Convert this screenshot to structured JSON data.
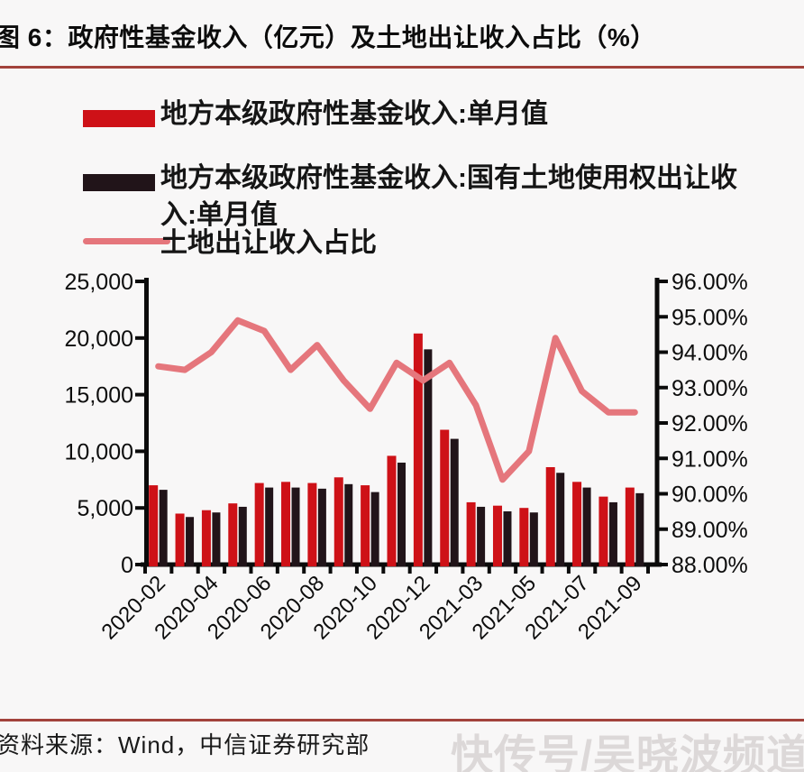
{
  "header": {
    "title": "图 6：政府性基金收入（亿元）及土地出让收入占比（%）"
  },
  "legend": {
    "items": [
      {
        "label": "地方本级政府性基金收入:单月值",
        "swatch_color": "#ce1117",
        "swatch_type": "bar"
      },
      {
        "label": "地方本级政府性基金收入:国有土地使用权出让收入:单月值",
        "swatch_color": "#211419",
        "swatch_type": "bar"
      },
      {
        "label": "土地出让收入占比",
        "swatch_color": "#e5767c",
        "swatch_type": "line"
      }
    ]
  },
  "chart_data": {
    "type": "bar+line",
    "title": "政府性基金收入（亿元）及土地出让收入占比（%）",
    "categories": [
      "2020-02",
      "2020-03",
      "2020-04",
      "2020-05",
      "2020-06",
      "2020-07",
      "2020-08",
      "2020-09",
      "2020-10",
      "2020-11",
      "2020-12",
      "2021-02",
      "2021-03",
      "2021-04",
      "2021-05",
      "2021-06",
      "2021-07",
      "2021-08",
      "2021-09"
    ],
    "series": [
      {
        "name": "地方本级政府性基金收入:单月值",
        "type": "bar",
        "axis": "left",
        "color": "#ce1117",
        "values": [
          7000,
          4500,
          4800,
          5400,
          7200,
          7300,
          7200,
          7700,
          7000,
          9600,
          20400,
          11900,
          5500,
          5200,
          5000,
          8600,
          7300,
          6000,
          6800
        ]
      },
      {
        "name": "地方本级政府性基金收入:国有土地使用权出让收入:单月值",
        "type": "bar",
        "axis": "left",
        "color": "#211419",
        "values": [
          6600,
          4200,
          4600,
          5100,
          6800,
          6800,
          6700,
          7100,
          6400,
          9000,
          19000,
          11100,
          5100,
          4700,
          4600,
          8100,
          6800,
          5500,
          6300
        ]
      },
      {
        "name": "土地出让收入占比",
        "type": "line",
        "axis": "right",
        "color": "#e5767c",
        "values_percent": [
          93.6,
          93.5,
          94.0,
          94.9,
          94.6,
          93.5,
          94.2,
          93.2,
          92.4,
          93.7,
          93.2,
          93.7,
          92.5,
          90.4,
          91.2,
          94.4,
          92.9,
          92.3,
          92.3
        ]
      }
    ],
    "left_axis": {
      "min": 0,
      "max": 25000,
      "tick_labels": [
        "25,000",
        "20,000",
        "15,000",
        "10,000",
        "5,000",
        "0"
      ]
    },
    "right_axis": {
      "min": 88,
      "max": 96,
      "tick_labels": [
        "96.00%",
        "95.00%",
        "94.00%",
        "93.00%",
        "92.00%",
        "91.00%",
        "90.00%",
        "89.00%",
        "88.00%"
      ]
    },
    "x_axis": {
      "visible_tick_labels": [
        "2020-02",
        "2020-04",
        "2020-06",
        "2020-08",
        "2020-10",
        "2020-12",
        "2021-03",
        "2021-05",
        "2021-07",
        "2021-09"
      ],
      "label_every": 2
    },
    "grid": false,
    "legend_position": "top-left"
  },
  "footer": {
    "source": "资料来源：Wind，中信证券研究部",
    "watermark": "快传号/吴晓波频道"
  },
  "colors": {
    "accent_rule": "#a2423c",
    "bar_red": "#ce1117",
    "bar_black": "#211419",
    "line_pink": "#e5767c",
    "axis_black": "#0b0b0b",
    "watermark_gray": "#dcd8d8",
    "background": "#f8f7f7"
  }
}
